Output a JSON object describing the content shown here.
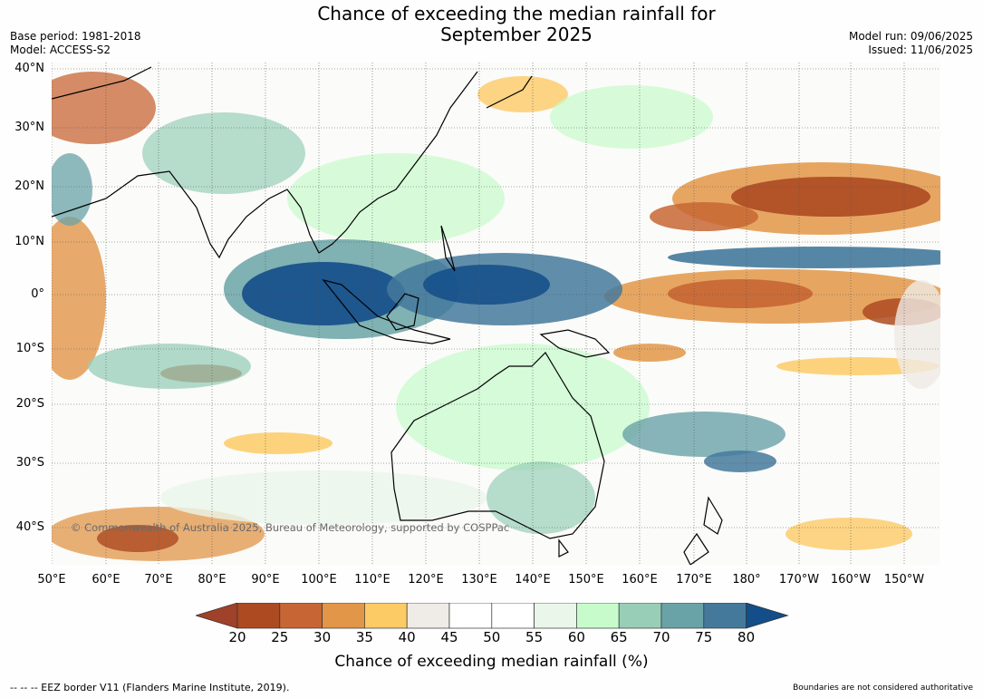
{
  "header": {
    "title_line1": "Chance of exceeding the median rainfall for",
    "title_line2": "September 2025",
    "base_period": "Base period: 1981-2018",
    "model": "Model: ACCESS-S2",
    "model_run": "Model run: 09/06/2025",
    "issued": "Issued: 11/06/2025"
  },
  "map": {
    "lat_labels": [
      "40°N",
      "30°N",
      "20°N",
      "10°N",
      "0°",
      "10°S",
      "20°S",
      "30°S",
      "40°S"
    ],
    "lon_labels": [
      "50°E",
      "60°E",
      "70°E",
      "80°E",
      "90°E",
      "100°E",
      "110°E",
      "120°E",
      "130°E",
      "140°E",
      "150°E",
      "160°E",
      "170°E",
      "180°",
      "170°W",
      "160°W",
      "150°W"
    ],
    "copyright": "© Commonwealth of Australia 2025, Bureau of Meteorology, supported by COSPPac"
  },
  "colorbar": {
    "ticks": [
      "20",
      "25",
      "30",
      "35",
      "40",
      "45",
      "50",
      "55",
      "60",
      "65",
      "70",
      "75",
      "80"
    ],
    "colors": [
      "#a0412a",
      "#ad4a22",
      "#c76634",
      "#e29648",
      "#fccb66",
      "#efebe6",
      "#ffffff",
      "#ffffff",
      "#eaf6ea",
      "#c8fbcc",
      "#98ceb8",
      "#6aa3a7",
      "#44799c",
      "#134d8a"
    ],
    "label": "Chance of exceeding median rainfall (%)"
  },
  "footer": {
    "eez_note": "--  --  -- EEZ border V11 (Flanders Marine Institute, 2019).",
    "authority_note": "Boundaries are not considered authoritative"
  }
}
